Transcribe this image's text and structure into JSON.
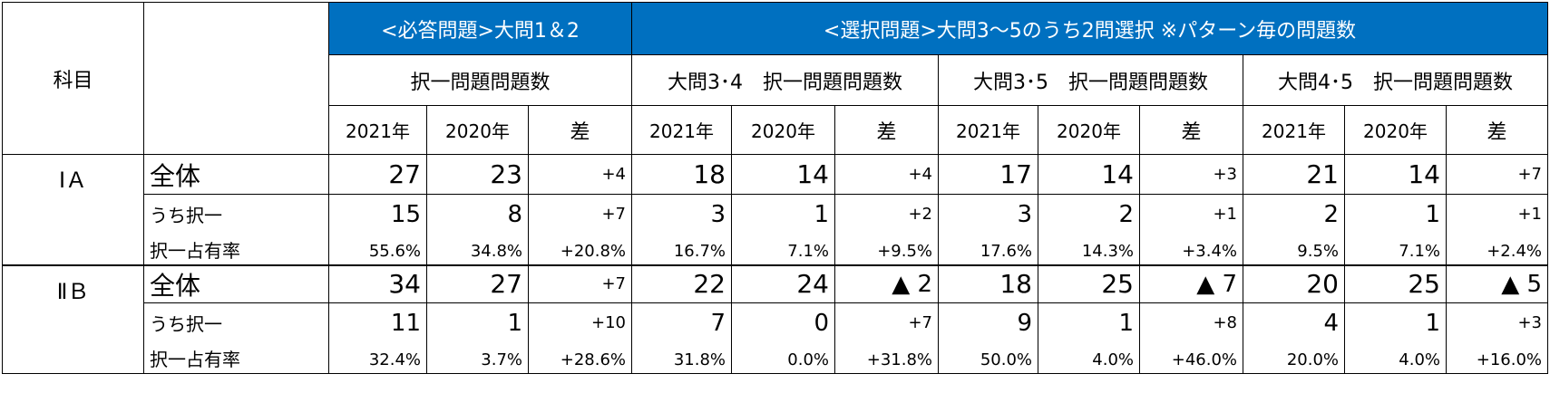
{
  "header": {
    "subject": "科目",
    "required": "<必答問題>大問1＆2",
    "selection": "<選択問題>大問3～5のうち2問選択 ※パターン毎の問題数",
    "groups": [
      "択一問題問題数",
      "大問3･4　択一問題問題数",
      "大問3･5　択一問題問題数",
      "大問4･5　択一問題問題数"
    ],
    "years": [
      "2021年",
      "2020年",
      "差"
    ]
  },
  "subjects": [
    {
      "name": "ⅠＡ",
      "rows": [
        {
          "label": "全体",
          "values": [
            "27",
            "23",
            "+4",
            "18",
            "14",
            "+4",
            "17",
            "14",
            "+3",
            "21",
            "14",
            "+7"
          ]
        },
        {
          "label": "うち択一",
          "values": [
            "15",
            "8",
            "+7",
            "3",
            "1",
            "+2",
            "3",
            "2",
            "+1",
            "2",
            "1",
            "+1"
          ]
        },
        {
          "label": "択一占有率",
          "values": [
            "55.6%",
            "34.8%",
            "+20.8%",
            "16.7%",
            "7.1%",
            "+9.5%",
            "17.6%",
            "14.3%",
            "+3.4%",
            "9.5%",
            "7.1%",
            "+2.4%"
          ]
        }
      ]
    },
    {
      "name": "ⅡＢ",
      "rows": [
        {
          "label": "全体",
          "values": [
            "34",
            "27",
            "+7",
            "22",
            "24",
            "▲ 2",
            "18",
            "25",
            "▲ 7",
            "20",
            "25",
            "▲ 5"
          ]
        },
        {
          "label": "うち択一",
          "values": [
            "11",
            "1",
            "+10",
            "7",
            "0",
            "+7",
            "9",
            "1",
            "+8",
            "4",
            "1",
            "+3"
          ]
        },
        {
          "label": "択一占有率",
          "values": [
            "32.4%",
            "3.7%",
            "+28.6%",
            "31.8%",
            "0.0%",
            "+31.8%",
            "50.0%",
            "4.0%",
            "+46.0%",
            "20.0%",
            "4.0%",
            "+16.0%"
          ]
        }
      ]
    }
  ]
}
